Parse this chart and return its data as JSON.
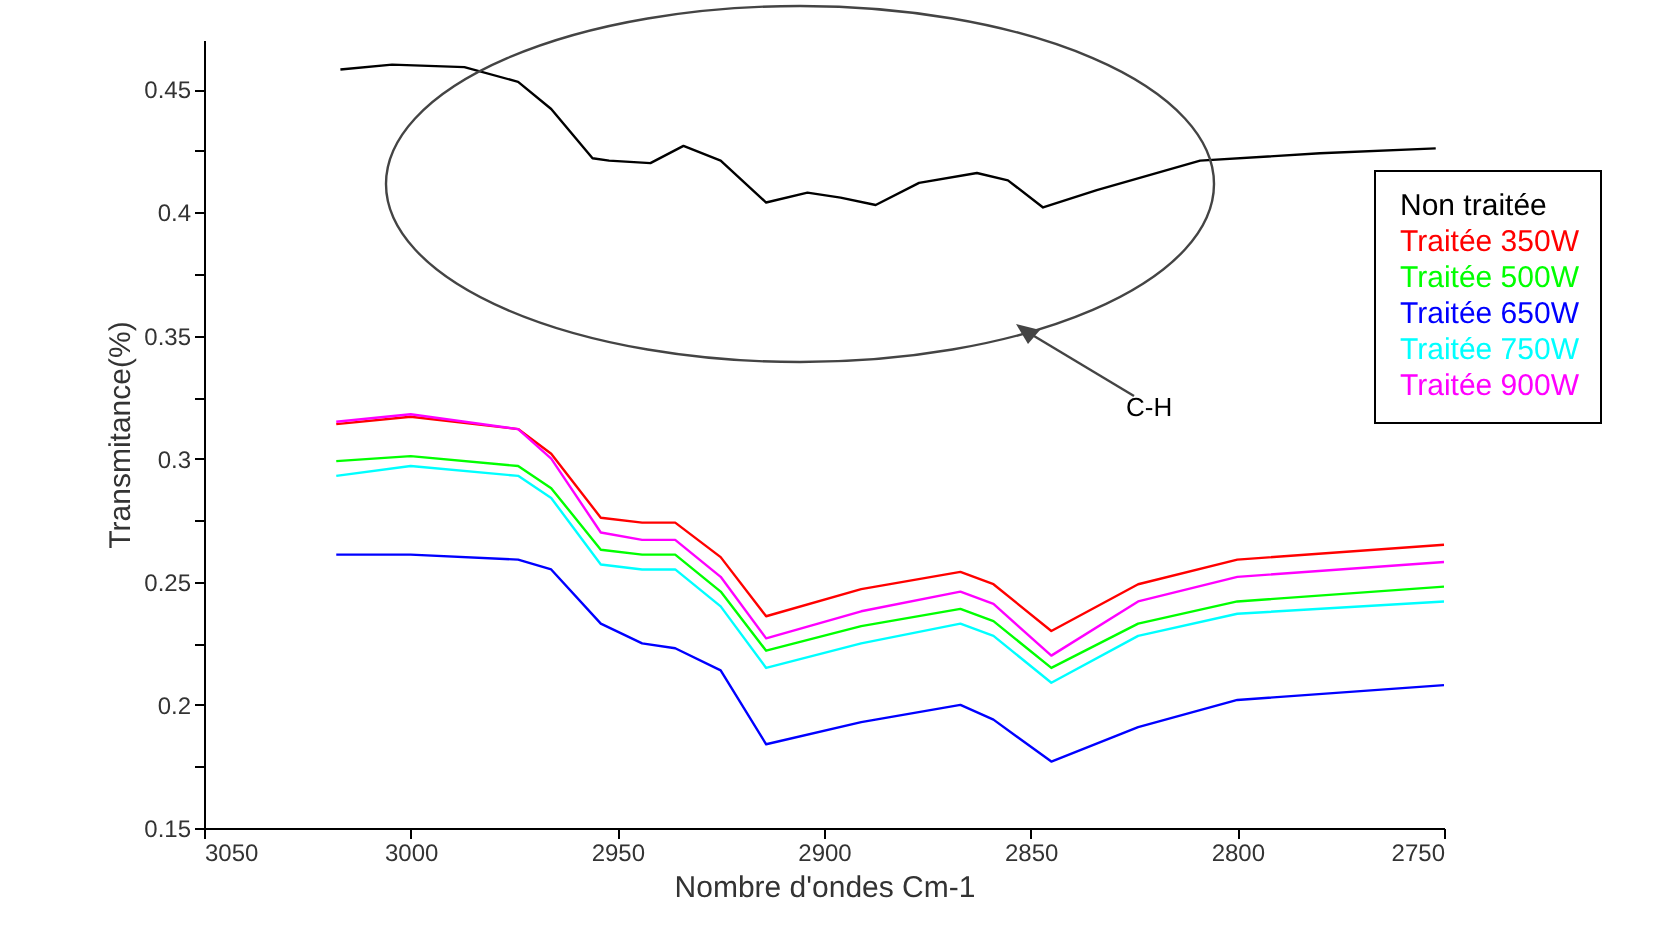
{
  "chart_data": {
    "type": "line",
    "xlabel": "Nombre d'ondes Cm-1",
    "ylabel": "Transmitance(%)",
    "annotations": [
      "C-H"
    ],
    "xlim": [
      3050,
      2750
    ],
    "xticks": [
      3050,
      3000,
      2950,
      2900,
      2850,
      2800,
      2750
    ],
    "ylim": [
      0.15,
      0.47
    ],
    "yticks": [
      0.15,
      {
        "value": 0.175,
        "label": null
      },
      0.2,
      {
        "value": 0.225,
        "label": null
      },
      0.25,
      {
        "value": 0.275,
        "label": null
      },
      0.3,
      {
        "value": 0.325,
        "label": null
      },
      0.35,
      {
        "value": 0.375,
        "label": null
      },
      0.4,
      {
        "value": 0.425,
        "label": null
      },
      0.45
    ],
    "grid": false,
    "legend": "top right",
    "x": [
      3018,
      3000,
      2974,
      2966,
      2954,
      2944,
      2936,
      2925,
      2914,
      2891,
      2867,
      2859,
      2845,
      2824,
      2800,
      2750
    ],
    "series": [
      {
        "name": "Non traitée",
        "color": "#000000",
        "x": [
          3017,
          3004.5,
          2987,
          2974,
          2966,
          2956,
          2952,
          2942,
          2934,
          2925,
          2914,
          2904,
          2896,
          2887.5,
          2877,
          2863,
          2855.5,
          2847,
          2834,
          2809,
          2780,
          2752
        ],
        "values": [
          0.458,
          0.46,
          0.459,
          0.453,
          0.442,
          0.422,
          0.421,
          0.42,
          0.427,
          0.421,
          0.404,
          0.408,
          0.406,
          0.403,
          0.412,
          0.416,
          0.413,
          0.402,
          0.409,
          0.421,
          0.424,
          0.426
        ]
      },
      {
        "name": "Traitée 350W",
        "color": "#ff0000",
        "values": [
          0.314,
          0.317,
          0.312,
          0.302,
          0.276,
          0.274,
          0.274,
          0.26,
          0.236,
          0.247,
          0.254,
          0.249,
          0.23,
          0.249,
          0.259,
          0.265
        ]
      },
      {
        "name": "Traitée 500W",
        "color": "#00ff00",
        "values": [
          0.299,
          0.301,
          0.297,
          0.288,
          0.263,
          0.261,
          0.261,
          0.246,
          0.222,
          0.232,
          0.239,
          0.234,
          0.215,
          0.233,
          0.242,
          0.248
        ]
      },
      {
        "name": "Traitée 650W",
        "color": "#0000ff",
        "values": [
          0.261,
          0.261,
          0.259,
          0.255,
          0.233,
          0.225,
          0.223,
          0.214,
          0.184,
          0.193,
          0.2,
          0.194,
          0.177,
          0.191,
          0.202,
          0.208
        ]
      },
      {
        "name": "Traitée 750W",
        "color": "#00ffff",
        "values": [
          0.293,
          0.297,
          0.293,
          0.284,
          0.257,
          0.255,
          0.255,
          0.24,
          0.215,
          0.225,
          0.233,
          0.228,
          0.209,
          0.228,
          0.237,
          0.242
        ]
      },
      {
        "name": "Traitée 900W",
        "color": "#ff00ff",
        "values": [
          0.315,
          0.318,
          0.312,
          0.3,
          0.27,
          0.267,
          0.267,
          0.252,
          0.227,
          0.238,
          0.246,
          0.241,
          0.22,
          0.242,
          0.252,
          0.258
        ]
      }
    ]
  }
}
